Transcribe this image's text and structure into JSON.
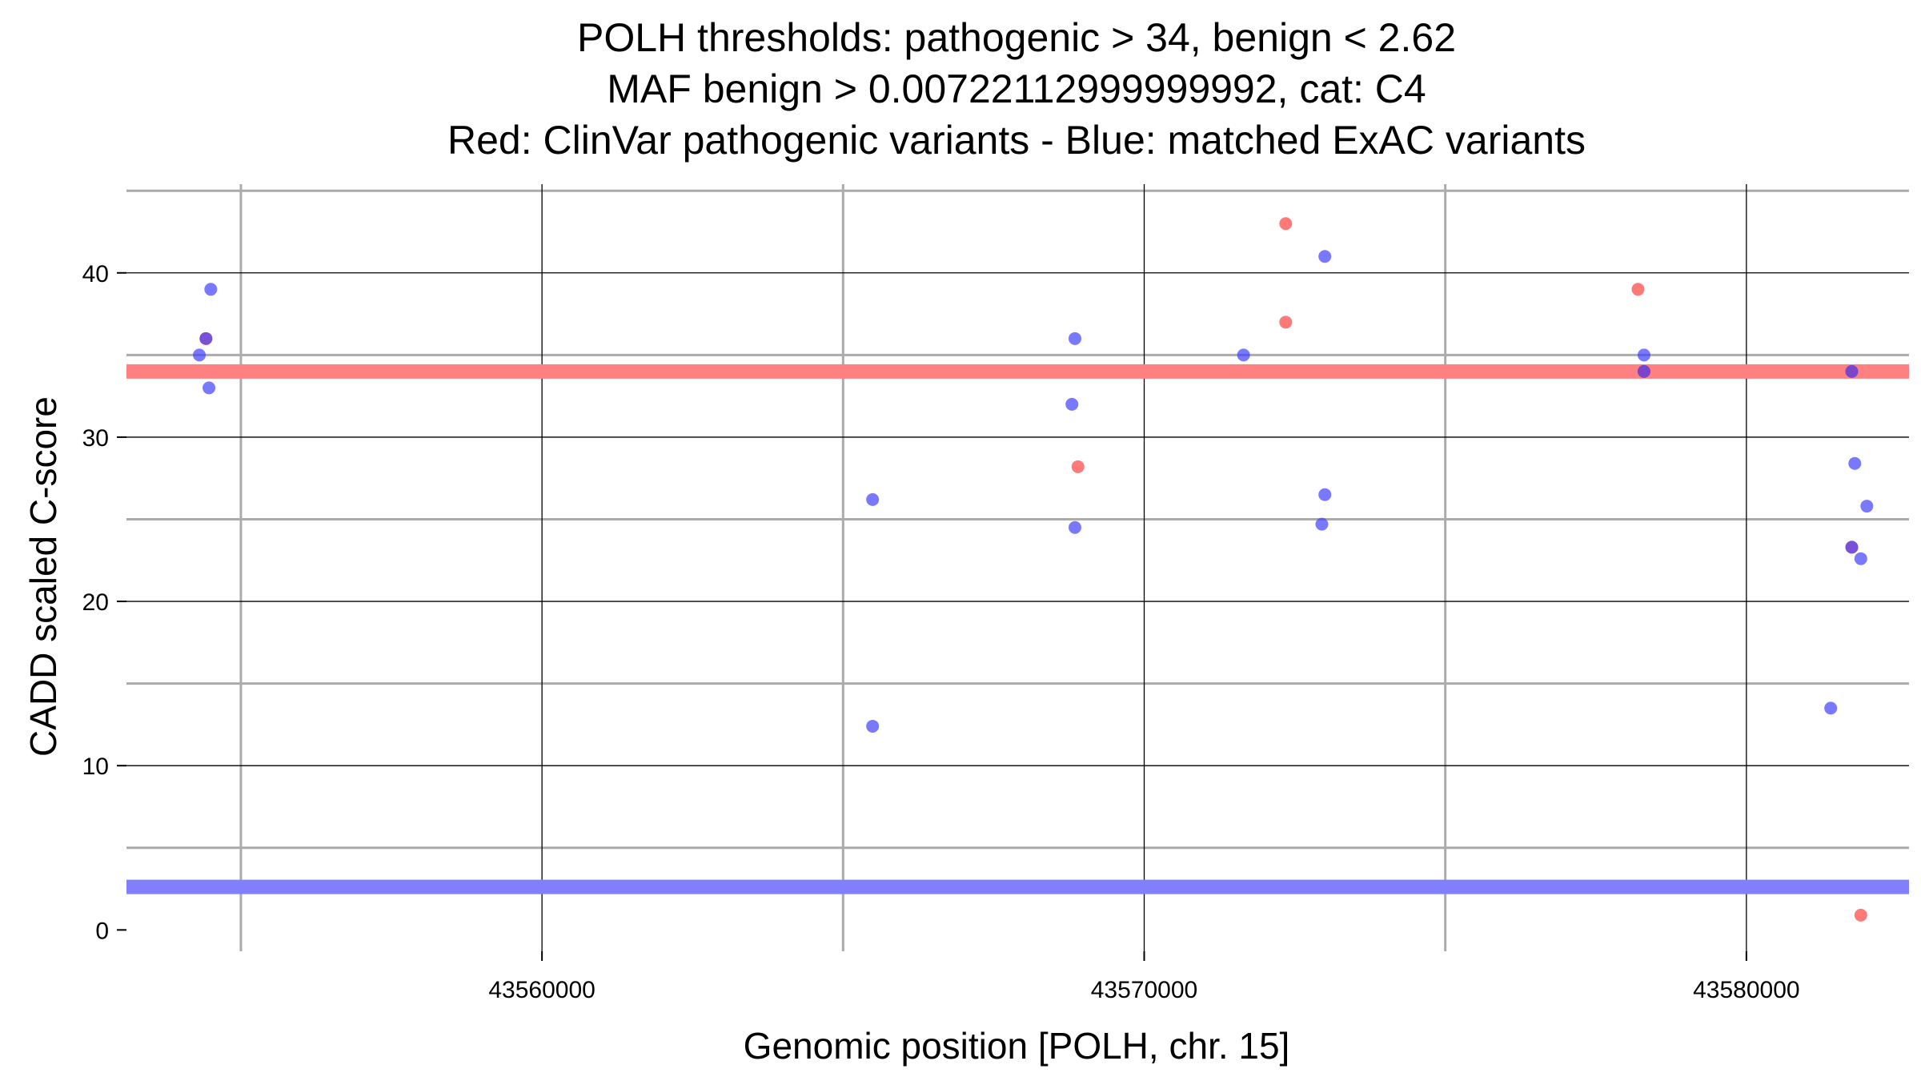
{
  "chart_data": {
    "type": "scatter",
    "title_lines": [
      "POLH thresholds: pathogenic > 34, benign < 2.62",
      "MAF benign > 0.00722112999999992, cat: C4",
      "Red: ClinVar pathogenic variants - Blue: matched ExAC variants"
    ],
    "xlabel": "Genomic position [POLH, chr. 15]",
    "ylabel": "CADD scaled C-score",
    "xlim": [
      43553100,
      43582700
    ],
    "ylim": [
      -1.3,
      45.4
    ],
    "x_ticks": [
      43560000,
      43570000,
      43580000
    ],
    "x_tick_labels": [
      "43560000",
      "43570000",
      "43580000"
    ],
    "x_major_grid": [
      43560000,
      43570000,
      43580000
    ],
    "x_minor_grid": [
      43555000,
      43565000,
      43575000
    ],
    "y_ticks": [
      0,
      10,
      20,
      30,
      40
    ],
    "y_tick_labels": [
      "0",
      "10",
      "20",
      "30",
      "40"
    ],
    "y_major_grid": [
      10,
      20,
      30,
      40
    ],
    "y_minor_grid": [
      5,
      15,
      25,
      35,
      45
    ],
    "thresholds": [
      {
        "name": "pathogenic",
        "value": 34,
        "color": "#ff8080"
      },
      {
        "name": "benign",
        "value": 2.62,
        "color": "#8080ff"
      }
    ],
    "series": [
      {
        "name": "ClinVar pathogenic variants",
        "color": "#ff4040",
        "points": [
          {
            "x": 43554420,
            "y": 36
          },
          {
            "x": 43568900,
            "y": 28.2
          },
          {
            "x": 43572350,
            "y": 43
          },
          {
            "x": 43572350,
            "y": 37
          },
          {
            "x": 43578200,
            "y": 39
          },
          {
            "x": 43578300,
            "y": 34
          },
          {
            "x": 43581750,
            "y": 34
          },
          {
            "x": 43581750,
            "y": 23.3
          },
          {
            "x": 43581900,
            "y": 0.9
          }
        ]
      },
      {
        "name": "matched ExAC variants",
        "color": "#4040ff",
        "points": [
          {
            "x": 43554310,
            "y": 35
          },
          {
            "x": 43554420,
            "y": 36
          },
          {
            "x": 43554500,
            "y": 39
          },
          {
            "x": 43554470,
            "y": 33
          },
          {
            "x": 43565490,
            "y": 26.2
          },
          {
            "x": 43565490,
            "y": 12.4
          },
          {
            "x": 43568850,
            "y": 36
          },
          {
            "x": 43568800,
            "y": 32
          },
          {
            "x": 43568850,
            "y": 24.5
          },
          {
            "x": 43571650,
            "y": 35
          },
          {
            "x": 43573000,
            "y": 41
          },
          {
            "x": 43573000,
            "y": 26.5
          },
          {
            "x": 43572950,
            "y": 24.7
          },
          {
            "x": 43578300,
            "y": 35
          },
          {
            "x": 43578300,
            "y": 34
          },
          {
            "x": 43581750,
            "y": 34
          },
          {
            "x": 43581800,
            "y": 28.4
          },
          {
            "x": 43582000,
            "y": 25.8
          },
          {
            "x": 43581750,
            "y": 23.3
          },
          {
            "x": 43581900,
            "y": 22.6
          },
          {
            "x": 43581400,
            "y": 13.5
          }
        ]
      }
    ]
  }
}
